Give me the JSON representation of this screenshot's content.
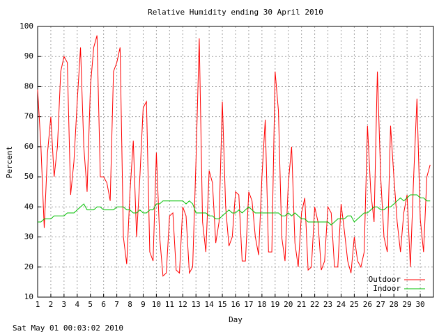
{
  "chart_data": {
    "type": "line",
    "title": "Relative Humidity ending 30 April 2010",
    "x_label": "Day",
    "y_label": "Percent",
    "footer": "Sat May 01 00:03:02 2010",
    "xlim": [
      1,
      31
    ],
    "ylim": [
      10,
      100
    ],
    "xticks": [
      1,
      2,
      3,
      4,
      5,
      6,
      7,
      8,
      9,
      10,
      11,
      12,
      13,
      14,
      15,
      16,
      17,
      18,
      19,
      20,
      21,
      22,
      23,
      24,
      25,
      26,
      27,
      28,
      29,
      30
    ],
    "yticks": [
      10,
      20,
      30,
      40,
      50,
      60,
      70,
      80,
      90,
      100
    ],
    "grid": true,
    "legend": "bottom-right",
    "x": [
      1,
      1.25,
      1.5,
      1.75,
      2,
      2.25,
      2.5,
      2.75,
      3,
      3.25,
      3.5,
      3.75,
      4,
      4.25,
      4.5,
      4.75,
      5,
      5.25,
      5.5,
      5.75,
      6,
      6.25,
      6.5,
      6.75,
      7,
      7.25,
      7.5,
      7.75,
      8,
      8.25,
      8.5,
      8.75,
      9,
      9.25,
      9.5,
      9.75,
      10,
      10.25,
      10.5,
      10.75,
      11,
      11.25,
      11.5,
      11.75,
      12,
      12.25,
      12.5,
      12.75,
      13,
      13.25,
      13.5,
      13.75,
      14,
      14.25,
      14.5,
      14.75,
      15,
      15.25,
      15.5,
      15.75,
      16,
      16.25,
      16.5,
      16.75,
      17,
      17.25,
      17.5,
      17.75,
      18,
      18.25,
      18.5,
      18.75,
      19,
      19.25,
      19.5,
      19.75,
      20,
      20.25,
      20.5,
      20.75,
      21,
      21.25,
      21.5,
      21.75,
      22,
      22.25,
      22.5,
      22.75,
      23,
      23.25,
      23.5,
      23.75,
      24,
      24.25,
      24.5,
      24.75,
      25,
      25.25,
      25.5,
      25.75,
      26,
      26.25,
      26.5,
      26.75,
      27,
      27.25,
      27.5,
      27.75,
      28,
      28.25,
      28.5,
      28.75,
      29,
      29.25,
      29.5,
      29.75,
      30,
      30.25,
      30.5,
      30.75
    ],
    "series": [
      {
        "name": "Outdoor",
        "color": "#ff0000",
        "values": [
          79,
          60,
          33,
          58,
          70,
          50,
          60,
          85,
          90,
          88,
          44,
          55,
          75,
          93,
          60,
          45,
          80,
          93,
          97,
          50,
          50,
          48,
          42,
          85,
          88,
          93,
          30,
          21,
          45,
          62,
          30,
          50,
          73,
          75,
          25,
          22,
          58,
          30,
          17,
          18,
          37,
          38,
          19,
          18,
          40,
          37,
          18,
          20,
          55,
          96,
          35,
          25,
          52,
          48,
          28,
          35,
          75,
          40,
          27,
          30,
          45,
          44,
          22,
          22,
          45,
          42,
          30,
          24,
          50,
          69,
          25,
          25,
          85,
          72,
          30,
          22,
          48,
          60,
          28,
          20,
          38,
          43,
          19,
          20,
          40,
          35,
          19,
          22,
          40,
          38,
          20,
          20,
          41,
          32,
          22,
          18,
          30,
          22,
          20,
          25,
          67,
          45,
          35,
          85,
          50,
          30,
          25,
          67,
          50,
          35,
          25,
          38,
          44,
          20,
          50,
          76,
          36,
          25,
          50,
          54
        ]
      },
      {
        "name": "Indoor",
        "color": "#00c000",
        "values": [
          35,
          35,
          36,
          36,
          36,
          37,
          37,
          37,
          37,
          38,
          38,
          38,
          39,
          40,
          41,
          39,
          39,
          39,
          40,
          40,
          39,
          39,
          39,
          39,
          40,
          40,
          40,
          39,
          39,
          38,
          38,
          39,
          38,
          38,
          39,
          39,
          41,
          41,
          42,
          42,
          42,
          42,
          42,
          42,
          42,
          41,
          42,
          41,
          38,
          38,
          38,
          38,
          37,
          37,
          36,
          36,
          37,
          38,
          39,
          38,
          38,
          39,
          38,
          39,
          40,
          39,
          38,
          38,
          38,
          38,
          38,
          38,
          38,
          38,
          37,
          37,
          38,
          37,
          38,
          37,
          36,
          36,
          35,
          35,
          35,
          35,
          35,
          35,
          35,
          34,
          35,
          36,
          36,
          36,
          37,
          37,
          35,
          36,
          37,
          38,
          38,
          39,
          40,
          40,
          39,
          39,
          40,
          40,
          41,
          42,
          43,
          42,
          43,
          44,
          44,
          44,
          43,
          43,
          42,
          42
        ]
      }
    ]
  }
}
